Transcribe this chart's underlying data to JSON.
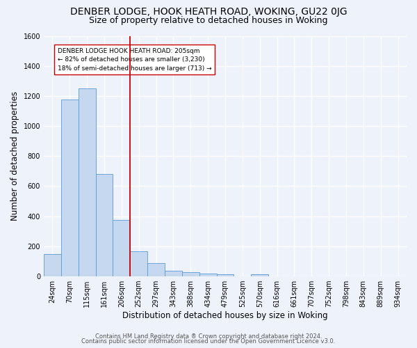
{
  "title": "DENBER LODGE, HOOK HEATH ROAD, WOKING, GU22 0JG",
  "subtitle": "Size of property relative to detached houses in Woking",
  "xlabel": "Distribution of detached houses by size in Woking",
  "ylabel": "Number of detached properties",
  "footnote1": "Contains HM Land Registry data ® Crown copyright and database right 2024.",
  "footnote2": "Contains public sector information licensed under the Open Government Licence v3.0.",
  "bar_labels": [
    "24sqm",
    "70sqm",
    "115sqm",
    "161sqm",
    "206sqm",
    "252sqm",
    "297sqm",
    "343sqm",
    "388sqm",
    "434sqm",
    "479sqm",
    "525sqm",
    "570sqm",
    "616sqm",
    "661sqm",
    "707sqm",
    "752sqm",
    "798sqm",
    "843sqm",
    "889sqm",
    "934sqm"
  ],
  "bar_values": [
    150,
    1175,
    1250,
    680,
    375,
    165,
    90,
    38,
    30,
    20,
    15,
    0,
    12,
    0,
    0,
    0,
    0,
    0,
    0,
    0,
    0
  ],
  "bar_color": "#c5d8f0",
  "bar_edgecolor": "#5b9bd5",
  "vline_x": 4.5,
  "vline_color": "#cc0000",
  "annotation_text": "DENBER LODGE HOOK HEATH ROAD: 205sqm\n← 82% of detached houses are smaller (3,230)\n18% of semi-detached houses are larger (713) →",
  "annotation_box_color": "#ffffff",
  "annotation_box_edgecolor": "#cc0000",
  "ylim": [
    0,
    1600
  ],
  "yticks": [
    0,
    200,
    400,
    600,
    800,
    1000,
    1200,
    1400,
    1600
  ],
  "bg_color": "#eef2fb",
  "grid_color": "#ffffff",
  "title_fontsize": 10,
  "subtitle_fontsize": 9,
  "axis_fontsize": 8.5,
  "tick_fontsize": 7,
  "footnote_fontsize": 6
}
